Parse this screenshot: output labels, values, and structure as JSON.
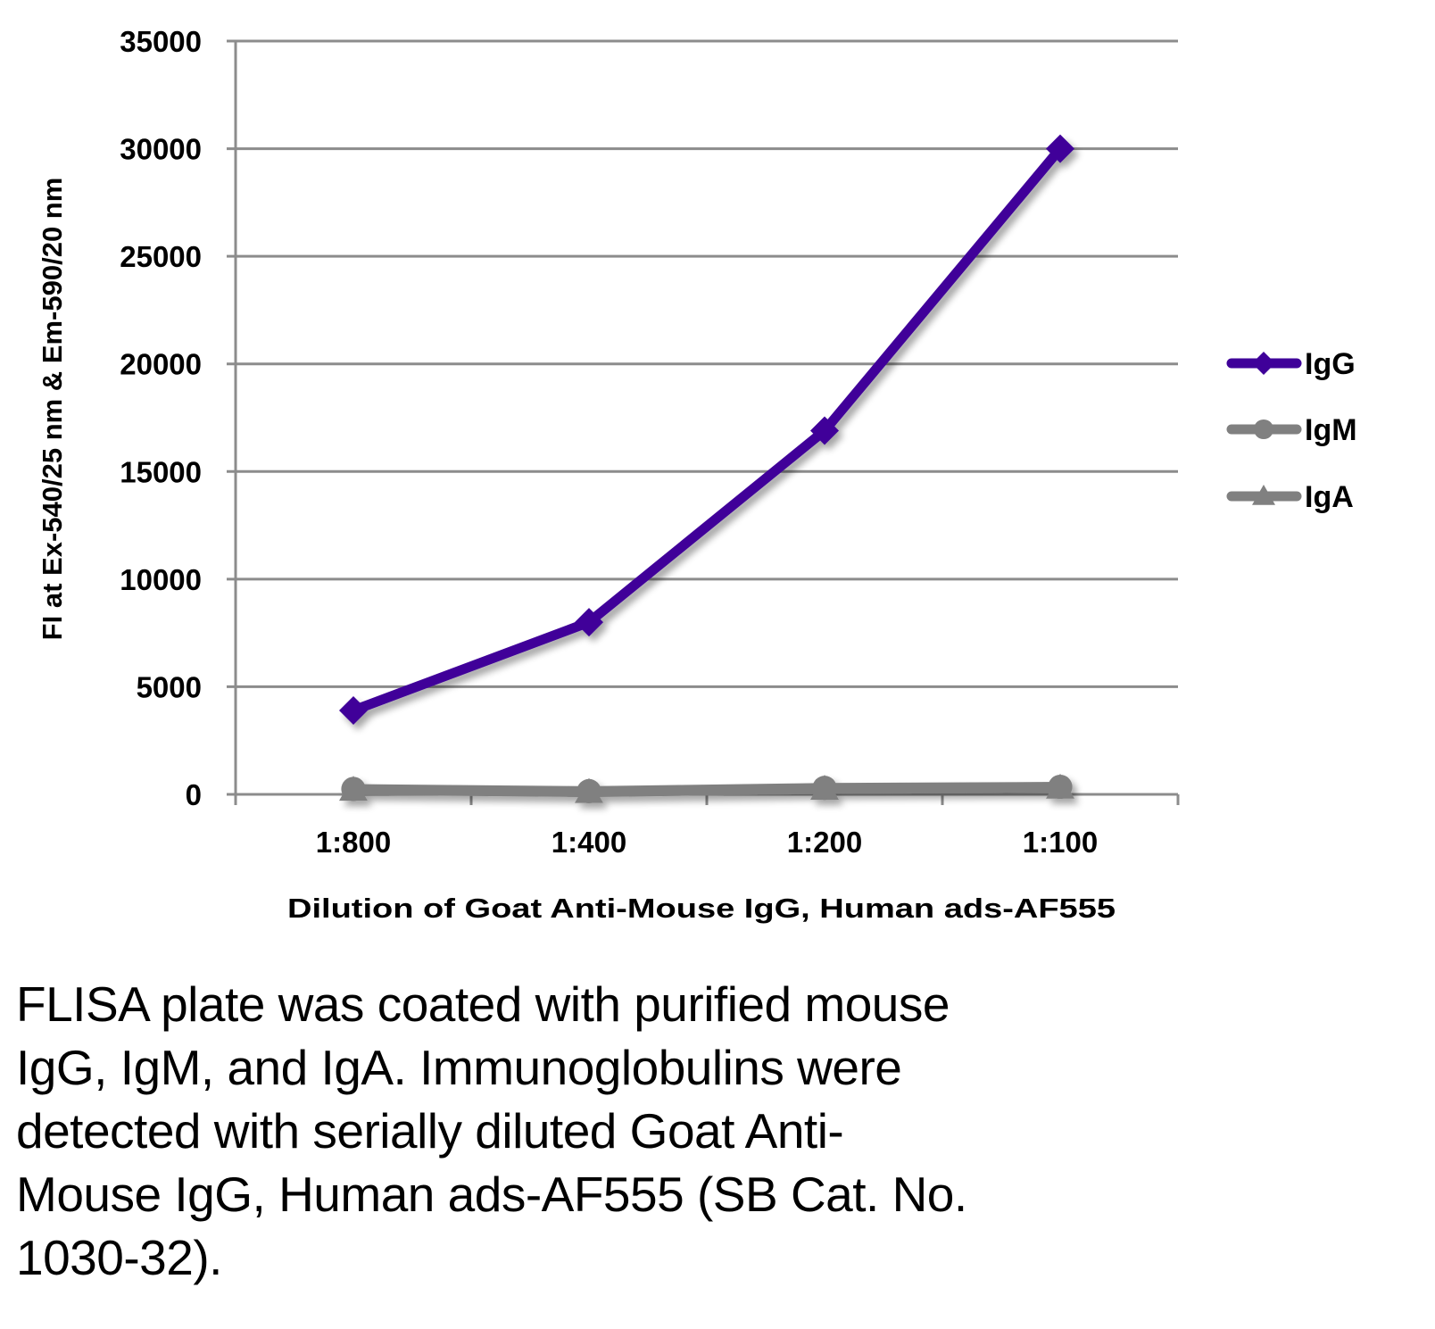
{
  "chart_data": {
    "type": "line",
    "title": "",
    "xlabel": "Dilution of Goat Anti-Mouse IgG, Human ads-AF555",
    "ylabel": "FI at Ex-540/25 nm & Em-590/20 nm",
    "categories": [
      "1:800",
      "1:400",
      "1:200",
      "1:100"
    ],
    "ylim": [
      0,
      35000
    ],
    "yticks": [
      0,
      5000,
      10000,
      15000,
      20000,
      25000,
      30000,
      35000
    ],
    "ytick_labels": [
      "0",
      "5000",
      "10000",
      "15000",
      "20000",
      "25000",
      "30000",
      "35000"
    ],
    "grid": true,
    "legend_position": "right",
    "series": [
      {
        "name": "IgG",
        "marker": "diamond",
        "color": "#3f0099",
        "values": [
          3900,
          8000,
          16900,
          30000
        ]
      },
      {
        "name": "IgM",
        "marker": "circle",
        "color": "#808080",
        "values": [
          250,
          150,
          300,
          350
        ]
      },
      {
        "name": "IgA",
        "marker": "triangle",
        "color": "#808080",
        "values": [
          200,
          100,
          250,
          300
        ]
      }
    ]
  },
  "caption": {
    "lines": [
      "FLISA plate was coated with purified mouse",
      "IgG, IgM, and IgA.  Immunoglobulins were",
      "detected with serially diluted Goat Anti-",
      "Mouse IgG, Human ads-AF555 (SB Cat. No.",
      "1030-32)."
    ]
  }
}
